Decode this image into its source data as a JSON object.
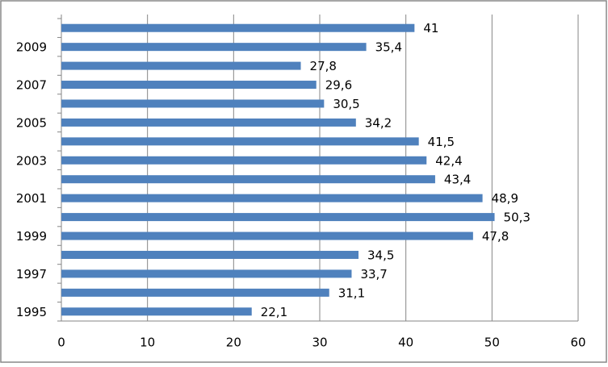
{
  "chart_data": {
    "type": "hbar",
    "categories": [
      "1995",
      null,
      "1997",
      null,
      "1999",
      null,
      "2001",
      null,
      "2003",
      null,
      "2005",
      null,
      "2007",
      null,
      "2009",
      null
    ],
    "values": [
      22.1,
      31.1,
      33.7,
      34.5,
      47.8,
      50.3,
      48.9,
      43.4,
      42.4,
      41.5,
      34.2,
      30.5,
      29.6,
      27.8,
      35.4,
      41
    ],
    "value_labels": [
      "22,1",
      "31,1",
      "33,7",
      "34,5",
      "47,8",
      "50,3",
      "48,9",
      "43,4",
      "42,4",
      "41,5",
      "34,2",
      "30,5",
      "29,6",
      "27,8",
      "35,4",
      "41"
    ],
    "color": "#4f81bd",
    "xlim": [
      0,
      60
    ],
    "xticks": [
      0,
      10,
      20,
      30,
      40,
      50,
      60
    ],
    "grid": true
  }
}
